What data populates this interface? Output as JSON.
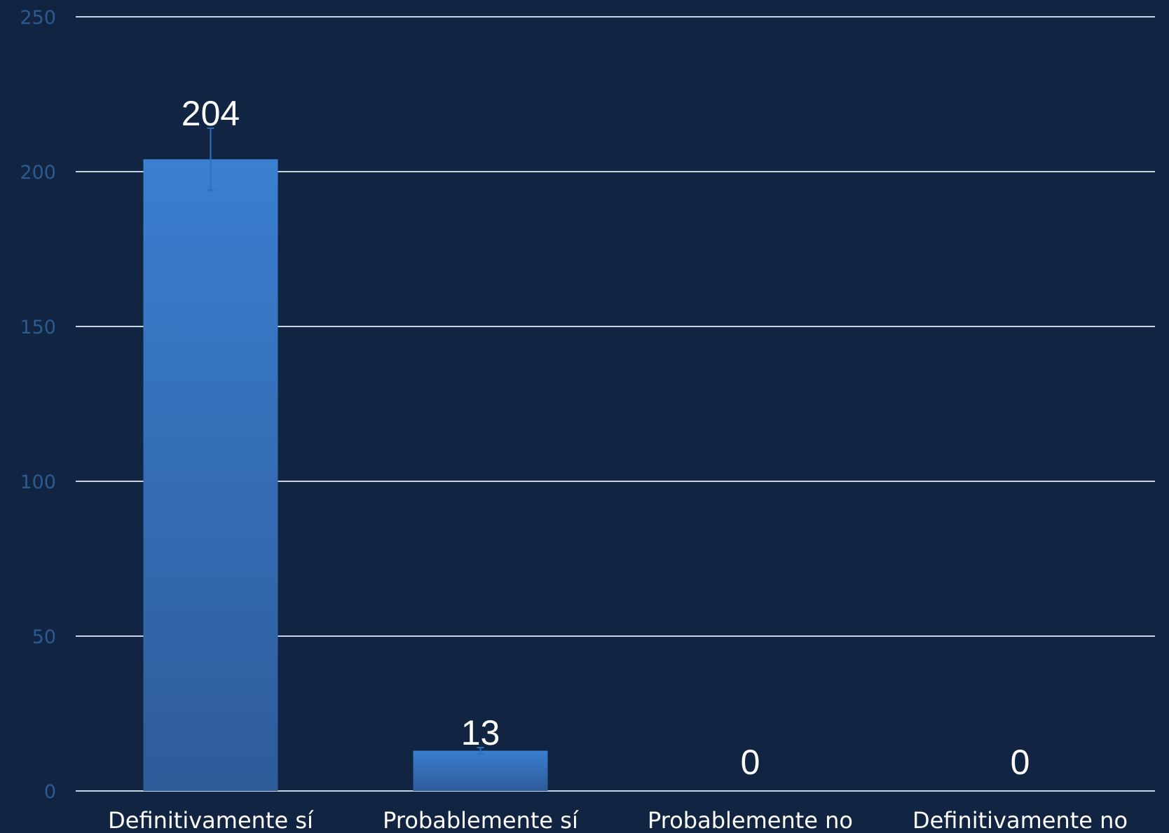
{
  "chart_data": {
    "type": "bar",
    "categories": [
      "Definitivamente sí",
      "Probablemente sí",
      "Probablemente no",
      "Definitivamente no"
    ],
    "values": [
      204,
      13,
      0,
      0
    ],
    "data_labels": [
      "204",
      "13",
      "0",
      "0"
    ],
    "error_bars": [
      10,
      1,
      0,
      0
    ],
    "ylim": [
      0,
      250
    ],
    "yticks": [
      0,
      50,
      100,
      150,
      200,
      250
    ],
    "ytick_labels": [
      "0",
      "50",
      "100",
      "150",
      "200",
      "250"
    ],
    "title": "",
    "xlabel": "",
    "ylabel": "",
    "grid": true,
    "legend": "none",
    "colors": {
      "background": "#112442",
      "bar_top": "#3a7fd0",
      "bar_bottom": "#2e5b9a",
      "gridline": "#c9d4e3",
      "ytick_text": "#2c5a91",
      "label_text": "#ffffff",
      "error_bar": "#2f6fbf"
    }
  }
}
